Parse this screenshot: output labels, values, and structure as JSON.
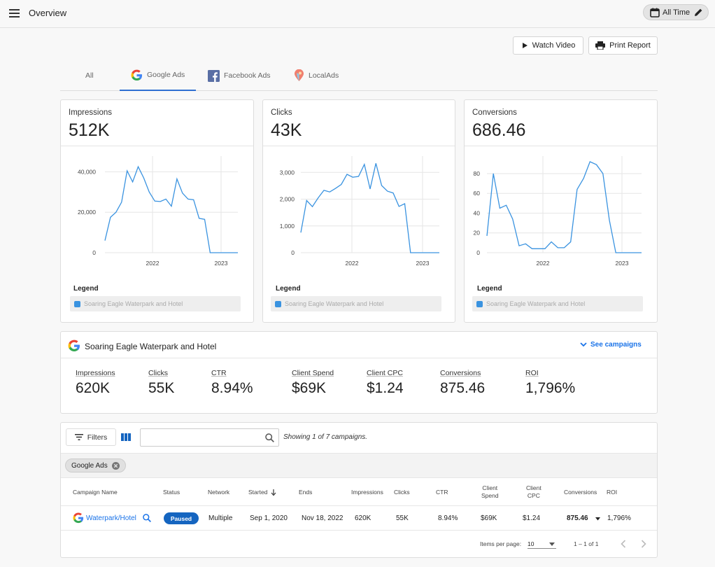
{
  "header": {
    "title": "Overview",
    "time_range": "All Time"
  },
  "actions": {
    "watch_video": "Watch Video",
    "print_report": "Print Report"
  },
  "tabs": [
    {
      "label": "All",
      "icon": "none"
    },
    {
      "label": "Google Ads",
      "icon": "google-icon"
    },
    {
      "label": "Facebook Ads",
      "icon": "facebook-icon"
    },
    {
      "label": "LocalAds",
      "icon": "localads-icon"
    }
  ],
  "metrics": [
    {
      "label": "Impressions",
      "value": "512K"
    },
    {
      "label": "Clicks",
      "value": "43K"
    },
    {
      "label": "Conversions",
      "value": "686.46"
    }
  ],
  "legend": {
    "title": "Legend",
    "item": "Soaring Eagle Waterpark and Hotel"
  },
  "chart_data": [
    {
      "type": "line",
      "title": "Impressions",
      "x_ticks": [
        "2022",
        "2023"
      ],
      "y_ticks": [
        "0",
        "20,000",
        "40,000"
      ],
      "ylim": [
        0,
        45000
      ],
      "series": [
        {
          "name": "Soaring Eagle Waterpark and Hotel",
          "color": "#3a93e0",
          "values": [
            6000,
            17500,
            20000,
            25000,
            40500,
            35000,
            42500,
            37000,
            30000,
            25500,
            25300,
            26500,
            23000,
            36500,
            29500,
            26500,
            26200,
            17000,
            16500,
            0,
            0,
            0,
            0,
            0,
            0
          ]
        }
      ]
    },
    {
      "type": "line",
      "title": "Clicks",
      "x_ticks": [
        "2022",
        "2023"
      ],
      "y_ticks": [
        "0",
        "1,000",
        "2,000",
        "3,000"
      ],
      "ylim": [
        0,
        3400
      ],
      "series": [
        {
          "name": "Soaring Eagle Waterpark and Hotel",
          "color": "#3a93e0",
          "values": [
            750,
            1950,
            1720,
            2050,
            2330,
            2270,
            2400,
            2550,
            2930,
            2820,
            2850,
            3300,
            2380,
            3340,
            2510,
            2300,
            2230,
            1730,
            1830,
            0,
            0,
            0,
            0,
            0,
            0
          ]
        }
      ]
    },
    {
      "type": "line",
      "title": "Conversions",
      "x_ticks": [
        "2022",
        "2023"
      ],
      "y_ticks": [
        "0",
        "20",
        "40",
        "60",
        "80"
      ],
      "ylim": [
        0,
        92
      ],
      "series": [
        {
          "name": "Soaring Eagle Waterpark and Hotel",
          "color": "#3a93e0",
          "values": [
            17,
            80,
            45,
            48,
            34,
            7,
            9,
            4,
            4,
            4,
            11,
            5,
            5,
            11,
            64,
            75,
            92,
            89,
            80,
            33,
            0,
            0,
            0,
            0,
            0
          ]
        }
      ]
    }
  ],
  "summary": {
    "account": "Soaring Eagle Waterpark and Hotel",
    "see_campaigns": "See campaigns",
    "stats": [
      {
        "label": "Impressions",
        "value": "620K"
      },
      {
        "label": "Clicks",
        "value": "55K"
      },
      {
        "label": "CTR",
        "value": "8.94%"
      },
      {
        "label": "Client Spend",
        "value": "$69K"
      },
      {
        "label": "Client CPC",
        "value": "$1.24"
      },
      {
        "label": "Conversions",
        "value": "875.46"
      },
      {
        "label": "ROI",
        "value": "1,796%"
      }
    ]
  },
  "table": {
    "filters_label": "Filters",
    "search_placeholder": "",
    "showing": "Showing 1 of 7 campaigns.",
    "filter_chip": "Google Ads",
    "columns": {
      "name": "Campaign Name",
      "status": "Status",
      "network": "Network",
      "started": "Started",
      "ends": "Ends",
      "impressions": "Impressions",
      "clicks": "Clicks",
      "ctr": "CTR",
      "spend_1": "Client",
      "spend_2": "Spend",
      "cpc_1": "Client",
      "cpc_2": "CPC",
      "conversions": "Conversions",
      "roi": "ROI"
    },
    "row": {
      "name": "Waterpark/Hotel",
      "status": "Paused",
      "network": "Multiple",
      "started": "Sep 1, 2020",
      "ends": "Nov 18, 2022",
      "impressions": "620K",
      "clicks": "55K",
      "ctr": "8.94%",
      "spend": "$69K",
      "cpc": "$1.24",
      "conversions": "875.46",
      "roi": "1,796%"
    },
    "pagination": {
      "items_label": "Items per page:",
      "per_page": "10",
      "range": "1 – 1 of 1"
    }
  },
  "colors": {
    "accent": "#1a73e8",
    "line": "#3a93e0",
    "badge": "#1565c0"
  }
}
